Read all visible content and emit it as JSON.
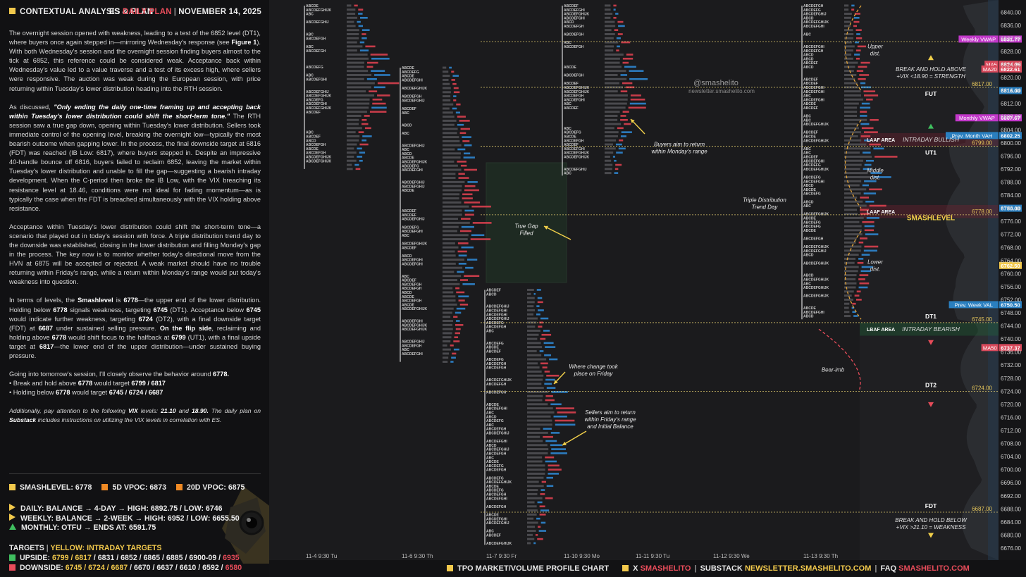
{
  "header": {
    "title": "CONTEXTUAL ANALYSIS & PLAN",
    "instrument": "ES",
    "plan_label": "DAILY PLAN",
    "date": "NOVEMBER 14, 2025"
  },
  "analysis": {
    "p1": "The overnight session opened with weakness, leading to a test of the 6852 level (DT1), where buyers once again stepped in—mirroring Wednesday's response (see",
    "p1_fig": "Figure 1",
    "p1_tail": "). With both Wednesday's session and the overnight session finding buyers almost to the tick at 6852, this reference could be considered weak. Acceptance back within Wednesday's value led to a value traverse and a test of its excess high, where sellers were responsive. The auction was weak during the European session, with price returning within Tuesday's lower distribution heading into the RTH session.",
    "p2_lead": "As discussed,",
    "p2_quote": "\"Only ending the daily one-time framing up and accepting back within Tuesday's lower distribution could shift the short-term tone.\"",
    "p2_tail": "The RTH session saw a true gap down, opening within Tuesday's lower distribution. Sellers took immediate control of the opening level, breaking the overnight low—typically the most bearish outcome when gapping lower. In the process, the final downside target at 6816 (FDT) was reached (IB Low: 6817), where buyers stepped in. Despite an impressive 40-handle bounce off 6816, buyers failed to reclaim 6852, leaving the market within Tuesday's lower distribution and unable to fill the gap—suggesting a bearish intraday development. When the C-period then broke the IB Low, with the VIX breaching its resistance level at 18.46, conditions were not ideal for fading momentum—as is typically the case when the FDT is breached simultaneously with the VIX holding above resistance.",
    "p3": "Acceptance within Tuesday's lower distribution could shift the short-term tone—a scenario that played out in today's session with force. A triple distribution trend day to the downside was established, closing in the lower distribution and filling Monday's gap in the process. The key now is to monitor whether today's directional move from the HVN at 6875 will be accepted or rejected. A weak market should have no trouble returning within Friday's range, while a return within Monday's range would put today's weakness into question.",
    "p4_a": "In terms of levels, the",
    "p4_smash": "Smashlevel",
    "p4_b": "is",
    "p4_c": "6778",
    "p4_d": "—the upper end of the lower distribution. Holding below",
    "p4_e": "6778",
    "p4_f": "signals weakness, targeting",
    "p4_g": "6745",
    "p4_h": "(DT1). Acceptance below",
    "p4_i": "6745",
    "p4_j": "would indicate further weakness, targeting",
    "p4_k": "6724",
    "p4_l": "(DT2), with a final downside target (FDT) at",
    "p4_m": "6687",
    "p4_n": "under sustained selling pressure.",
    "p4_o": "On the flip side",
    "p4_p": ", reclaiming and holding above",
    "p4_q": "6778",
    "p4_r": "would shift focus to the halfback at",
    "p4_s": "6799",
    "p4_t": "(UT1), with a final upside target at",
    "p4_u": "6817",
    "p4_v": "—the lower end of the upper distribution—under sustained buying pressure.",
    "p5_a": "Going into tomorrow's session, I'll closely observe the behavior around",
    "p5_b": "6778.",
    "p5_l1a": "• Break and hold above",
    "p5_l1b": "6778",
    "p5_l1c": "would target",
    "p5_l1d": "6799 / 6817",
    "p5_l2a": "• Holding below",
    "p5_l2b": "6778",
    "p5_l2c": "would target",
    "p5_l2d": "6745 / 6724 / 6687",
    "p6_a": "Additionally, pay attention to the following",
    "p6_b": "VIX",
    "p6_c": "levels:",
    "p6_d": "21.10",
    "p6_e": "and",
    "p6_f": "18.90.",
    "p6_g": "The daily plan on",
    "p6_h": "Substack",
    "p6_i": "includes instructions on utilizing the VIX levels in correlation with ES."
  },
  "stats": {
    "smashlevel": "SMASHLEVEL: 6778",
    "vpoc5": "5D VPOC: 6873",
    "vpoc20": "20D VPOC: 6875",
    "daily": "DAILY: BALANCE → 4-DAY → HIGH: 6892.75 / LOW: 6746",
    "weekly": "WEEKLY: BALANCE → 2-WEEK → HIGH: 6952 / LOW: 6655.50",
    "monthly": "MONTHLY: OTFU → ENDS AT: 6591.75",
    "targets_label": "TARGETS",
    "targets_sep": "|",
    "targets_note": "YELLOW: INTRADAY TARGETS",
    "upside_label": "UPSIDE:",
    "upside_yellow": "6799 / 6817",
    "upside_rest": "/ 6831 / 6852 / 6865 / 6885 / 6900-09 /",
    "upside_red": "6935",
    "downside_label": "DOWNSIDE:",
    "downside_yellow": "6745 / 6724 / 6687",
    "downside_rest": "/ 6670 / 6637 / 6610 / 6592 /",
    "downside_red": "6580"
  },
  "bottom_bar": {
    "chart_label": "TPO MARKET/VOLUME PROFILE CHART",
    "x_label": "X",
    "x_handle": "SMASHELITO",
    "substack_label": "SUBSTACK",
    "substack_url": "NEWSLETTER.SMASHELITO.COM",
    "faq_label": "FAQ",
    "faq_url": "SMASHELITO.COM",
    "sep": "|"
  },
  "watermark": {
    "handle": "@smashelito",
    "site": "newsletter.smashelito.com"
  },
  "chart_data": {
    "type": "table",
    "ylim": [
      6676,
      6842
    ],
    "y_ticks": [
      6840,
      6836,
      6832,
      6828,
      6824,
      6820,
      6816,
      6812,
      6808,
      6804,
      6800,
      6796,
      6792,
      6788,
      6784,
      6780,
      6776,
      6772,
      6768,
      6764,
      6760,
      6756,
      6752,
      6748,
      6744,
      6740,
      6736,
      6732,
      6728,
      6724,
      6720,
      6716,
      6712,
      6708,
      6704,
      6700,
      6696,
      6692,
      6688,
      6684,
      6680,
      6676
    ],
    "y_tick_labels": [
      "6840.00",
      "6836.00",
      "6832.00",
      "6828.00",
      "6824.00",
      "6820.00",
      "6816.00",
      "6812.00",
      "6808.00",
      "6804.00",
      "6800.00",
      "6796.00",
      "6792.00",
      "6788.00",
      "6784.00",
      "6780.00",
      "6776.00",
      "6772.00",
      "6768.00",
      "6764.00",
      "6760.00",
      "6756.00",
      "6752.00",
      "6748.00",
      "6744.00",
      "6740.00",
      "6736.00",
      "6732.00",
      "6728.00",
      "6724.00",
      "6720.00",
      "6716.00",
      "6712.00",
      "6708.00",
      "6704.00",
      "6700.00",
      "6696.00",
      "6692.00",
      "6688.00",
      "6684.00",
      "6680.00",
      "6676.00"
    ],
    "sessions": [
      {
        "label": "11-4  9:30 Tu",
        "low": 6792,
        "high": 6842
      },
      {
        "label": "11-6  9:30 Th",
        "low": 6733,
        "high": 6823
      },
      {
        "label": "11-7  9:30 Fr",
        "low": 6677,
        "high": 6755
      },
      {
        "label": "11-10  9:30 Mo",
        "low": 6790,
        "high": 6842
      },
      {
        "label": "11-11  9:30 Tu",
        "low": 6790,
        "high": 6842
      },
      {
        "label": "11-12  9:30 We",
        "low": 6790,
        "high": 6842
      },
      {
        "label": "11-13  9:30 Th",
        "low": 6746,
        "high": 6842
      }
    ],
    "price_badges": [
      {
        "label": "Weekly VWAP",
        "value": "6831.77",
        "price": 6831.77,
        "color": "#c238c9"
      },
      {
        "label": "MA5",
        "value": "6824.05",
        "price": 6824.05,
        "color": "#d94a5c"
      },
      {
        "label": "MA20",
        "value": "6822.61",
        "price": 6822.61,
        "color": "#d94a5c"
      },
      {
        "label": "",
        "value": "6816.00",
        "price": 6816.0,
        "color": "#2a7fc0"
      },
      {
        "label": "Monthly VWAP",
        "value": "6807.67",
        "price": 6807.67,
        "color": "#c238c9"
      },
      {
        "label": "Prev. Month VAH",
        "value": "6802.25",
        "price": 6802.25,
        "color": "#2a7fc0"
      },
      {
        "label": "",
        "value": "6780.00",
        "price": 6780.0,
        "color": "#2a7fc0"
      },
      {
        "label": "",
        "value": "6762.50",
        "price": 6762.5,
        "color": "#f2c94c"
      },
      {
        "label": "Prev. Week VAL",
        "value": "6750.50",
        "price": 6750.5,
        "color": "#2a7fc0"
      },
      {
        "label": "MA50",
        "value": "6737.37",
        "price": 6737.37,
        "color": "#d94a5c"
      }
    ],
    "levels": [
      {
        "value": "6831.00",
        "price": 6831
      },
      {
        "value": "6817.00",
        "price": 6817
      },
      {
        "value": "6799.00",
        "price": 6799
      },
      {
        "value": "6778.00",
        "price": 6778
      },
      {
        "value": "6745.00",
        "price": 6745
      },
      {
        "value": "6724.00",
        "price": 6724
      },
      {
        "value": "6687.00",
        "price": 6687
      }
    ],
    "zone_labels": {
      "fut": "FUT",
      "ut1": "UT1",
      "dt1": "DT1",
      "dt2": "DT2",
      "fdt": "FDT",
      "smashlevel": "SMASHLEVEL",
      "laaf1": "LAAF AREA",
      "laaf2": "LAAF AREA",
      "lbaf": "LBAF AREA",
      "bull": "INTRADAY BULLISH",
      "bear": "INTRADAY BEARISH",
      "upper": [
        "Upper",
        "dist."
      ],
      "middle": [
        "Middle",
        "dist."
      ],
      "lower": [
        "Lower",
        "dist."
      ],
      "bear_imb": "Bear-imb",
      "break_above": [
        "BREAK AND HOLD ABOVE",
        "+VIX <18.90 = STRENGTH"
      ],
      "break_below": [
        "BREAK AND HOLD BELOW",
        "+VIX >21.10 = WEAKNESS"
      ]
    },
    "annotations": {
      "true_gap": [
        "True Gap",
        "Filled"
      ],
      "buyers": [
        "Buyers aim to return",
        "within Monday's range"
      ],
      "triple": [
        "Triple Distribution",
        "Trend Day"
      ],
      "where_change": [
        "Where change took",
        "place on Friday"
      ],
      "sellers": [
        "Sellers aim to return",
        "within Friday's range",
        "and Initial Balance"
      ]
    }
  }
}
